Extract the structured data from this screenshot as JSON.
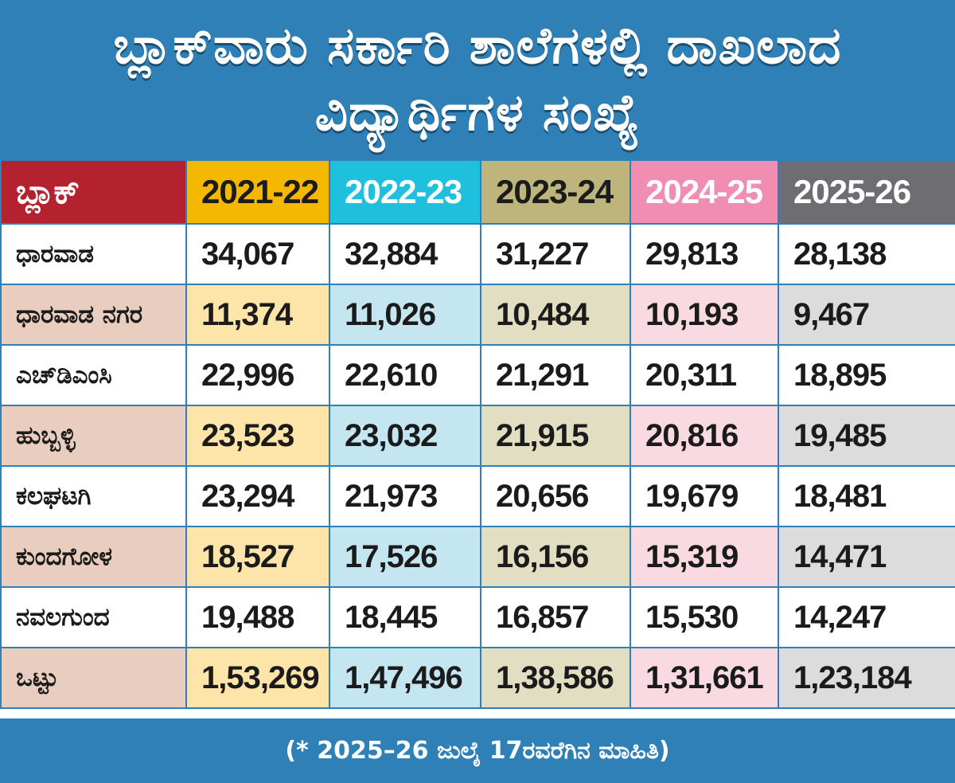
{
  "title": {
    "line1": "ಬ್ಲಾಕ್‌ವಾರು ಸರ್ಕಾರಿ ಶಾಲೆಗಳಲ್ಲಿ ದಾಖಲಾದ",
    "line2": "ವಿದ್ಯಾರ್ಥಿಗಳ ಸಂಖ್ಯೆ"
  },
  "footnote": "(* 2025–26 ಜುಲೈ 17ರವರೆಗಿನ ಮಾಹಿತಿ)",
  "colors": {
    "title_bg": "#2e80b6",
    "border": "#2e80b6",
    "block_header_bg": "#b5222f",
    "block_header_text": "#ffffff",
    "block_alt_bg": "#e9cdbf",
    "row_bg": "#ffffff",
    "text": "#1b1b1b"
  },
  "chart_data": {
    "type": "table",
    "title": "ಬ್ಲಾಕ್‌ವಾರು ಸರ್ಕಾರಿ ಶಾಲೆಗಳಲ್ಲಿ ದಾಖಲಾದ ವಿದ್ಯಾರ್ಥಿಗಳ ಸಂಖ್ಯೆ",
    "block_header": "ಬ್ಲಾಕ್",
    "columns": [
      {
        "label": "2021-22",
        "header_bg": "#f5b800",
        "header_text": "#1b1b1b",
        "alt_bg": "#fde4a8"
      },
      {
        "label": "2022-23",
        "header_bg": "#1ec0dd",
        "header_text": "#ffffff",
        "alt_bg": "#c4e6f1"
      },
      {
        "label": "2023-24",
        "header_bg": "#bdb57c",
        "header_text": "#1b1b1b",
        "alt_bg": "#e2dec2"
      },
      {
        "label": "2024-25",
        "header_bg": "#f08db0",
        "header_text": "#ffffff",
        "alt_bg": "#f9d9e2"
      },
      {
        "label": "2025-26",
        "header_bg": "#6e6d72",
        "header_text": "#ffffff",
        "alt_bg": "#dcdcdd"
      }
    ],
    "rows": [
      {
        "block": "ಧಾರವಾಡ",
        "values": [
          "34,067",
          "32,884",
          "31,227",
          "29,813",
          "28,138"
        ]
      },
      {
        "block": "ಧಾರವಾಡ ನಗರ",
        "values": [
          "11,374",
          "11,026",
          "10,484",
          "10,193",
          "9,467"
        ]
      },
      {
        "block": "ಎಚ್‌ಡಿಎಂಸಿ",
        "values": [
          "22,996",
          "22,610",
          "21,291",
          "20,311",
          "18,895"
        ]
      },
      {
        "block": "ಹುಬ್ಬಳ್ಳಿ",
        "values": [
          "23,523",
          "23,032",
          "21,915",
          "20,816",
          "19,485"
        ]
      },
      {
        "block": "ಕಲಘಟಗಿ",
        "values": [
          "23,294",
          "21,973",
          "20,656",
          "19,679",
          "18,481"
        ]
      },
      {
        "block": "ಕುಂದಗೋಳ",
        "values": [
          "18,527",
          "17,526",
          "16,156",
          "15,319",
          "14,471"
        ]
      },
      {
        "block": "ನವಲಗುಂದ",
        "values": [
          "19,488",
          "18,445",
          "16,857",
          "15,530",
          "14,247"
        ]
      },
      {
        "block": "ಒಟ್ಟು",
        "values": [
          "1,53,269",
          "1,47,496",
          "1,38,586",
          "1,31,661",
          "1,23,184"
        ]
      }
    ]
  }
}
